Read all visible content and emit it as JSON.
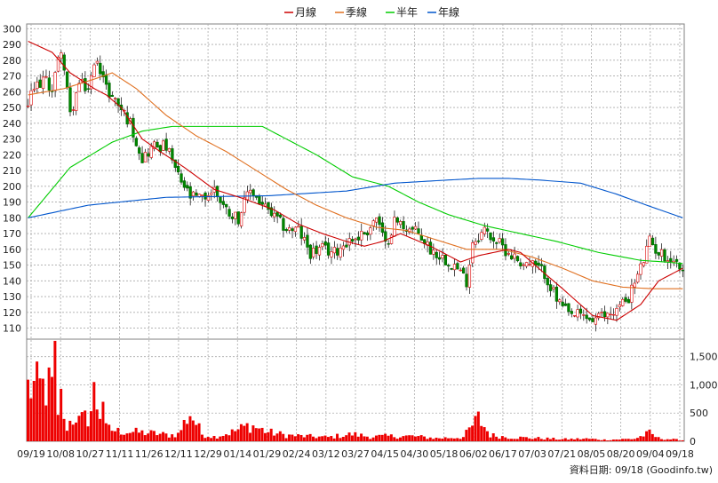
{
  "chart_data": {
    "type": "candlestick",
    "legend": [
      {
        "name": "月線",
        "color": "#cc0000"
      },
      {
        "name": "季線",
        "color": "#e07020"
      },
      {
        "name": "半年",
        "color": "#00cc00"
      },
      {
        "name": "年線",
        "color": "#0055cc"
      }
    ],
    "price_axis": {
      "ticks": [
        110,
        120,
        130,
        140,
        150,
        160,
        170,
        180,
        190,
        200,
        210,
        220,
        230,
        240,
        250,
        260,
        270,
        280,
        290,
        300
      ],
      "ylim": [
        103,
        303
      ]
    },
    "volume_axis": {
      "ticks": [
        "0",
        "500",
        "1,000",
        "1,500"
      ],
      "tick_values": [
        0,
        500,
        1000,
        1500
      ],
      "ylim": [
        0,
        1810
      ]
    },
    "x_labels": [
      "09/19",
      "10/08",
      "10/27",
      "11/11",
      "11/26",
      "12/11",
      "12/29",
      "01/14",
      "01/29",
      "02/24",
      "03/12",
      "03/27",
      "04/15",
      "04/30",
      "05/18",
      "06/02",
      "06/17",
      "07/03",
      "07/21",
      "08/05",
      "08/20",
      "09/04",
      "09/18"
    ],
    "footer": "資料日期: 09/18  (Goodinfo.tw)",
    "price_anchors": [
      [
        0,
        252
      ],
      [
        2,
        262
      ],
      [
        5,
        268
      ],
      [
        8,
        262
      ],
      [
        11,
        288
      ],
      [
        14,
        245
      ],
      [
        17,
        265
      ],
      [
        20,
        262
      ],
      [
        23,
        282
      ],
      [
        26,
        262
      ],
      [
        30,
        252
      ],
      [
        34,
        240
      ],
      [
        38,
        218
      ],
      [
        42,
        226
      ],
      [
        46,
        225
      ],
      [
        50,
        206
      ],
      [
        54,
        193
      ],
      [
        58,
        192
      ],
      [
        62,
        198
      ],
      [
        66,
        185
      ],
      [
        70,
        180
      ],
      [
        74,
        198
      ],
      [
        78,
        188
      ],
      [
        82,
        180
      ],
      [
        86,
        173
      ],
      [
        90,
        172
      ],
      [
        94,
        158
      ],
      [
        98,
        160
      ],
      [
        102,
        158
      ],
      [
        106,
        165
      ],
      [
        110,
        168
      ],
      [
        113,
        172
      ],
      [
        116,
        180
      ],
      [
        119,
        162
      ],
      [
        122,
        178
      ],
      [
        126,
        174
      ],
      [
        130,
        170
      ],
      [
        134,
        160
      ],
      [
        138,
        155
      ],
      [
        142,
        150
      ],
      [
        146,
        140
      ],
      [
        148,
        165
      ],
      [
        152,
        172
      ],
      [
        156,
        165
      ],
      [
        160,
        158
      ],
      [
        164,
        152
      ],
      [
        168,
        150
      ],
      [
        172,
        145
      ],
      [
        176,
        128
      ],
      [
        180,
        118
      ],
      [
        184,
        118
      ],
      [
        188,
        115
      ],
      [
        192,
        118
      ],
      [
        196,
        122
      ],
      [
        200,
        130
      ],
      [
        204,
        148
      ],
      [
        207,
        165
      ],
      [
        210,
        158
      ],
      [
        213,
        155
      ],
      [
        216,
        152
      ],
      [
        218,
        145
      ]
    ],
    "ma_month": [
      [
        0,
        292
      ],
      [
        8,
        285
      ],
      [
        14,
        272
      ],
      [
        22,
        262
      ],
      [
        26,
        258
      ],
      [
        31,
        250
      ],
      [
        38,
        230
      ],
      [
        44,
        222
      ],
      [
        52,
        212
      ],
      [
        62,
        198
      ],
      [
        72,
        192
      ],
      [
        82,
        185
      ],
      [
        90,
        176
      ],
      [
        98,
        170
      ],
      [
        106,
        165
      ],
      [
        112,
        162
      ],
      [
        118,
        165
      ],
      [
        124,
        170
      ],
      [
        134,
        162
      ],
      [
        144,
        152
      ],
      [
        150,
        156
      ],
      [
        160,
        160
      ],
      [
        164,
        158
      ],
      [
        170,
        148
      ],
      [
        178,
        135
      ],
      [
        188,
        118
      ],
      [
        196,
        115
      ],
      [
        204,
        125
      ],
      [
        210,
        140
      ],
      [
        218,
        148
      ]
    ],
    "ma_quarter": [
      [
        0,
        258
      ],
      [
        12,
        262
      ],
      [
        22,
        268
      ],
      [
        28,
        272
      ],
      [
        36,
        262
      ],
      [
        46,
        245
      ],
      [
        56,
        232
      ],
      [
        66,
        222
      ],
      [
        76,
        210
      ],
      [
        86,
        198
      ],
      [
        96,
        188
      ],
      [
        106,
        180
      ],
      [
        116,
        174
      ],
      [
        126,
        172
      ],
      [
        136,
        166
      ],
      [
        146,
        160
      ],
      [
        158,
        160
      ],
      [
        168,
        155
      ],
      [
        178,
        148
      ],
      [
        188,
        140
      ],
      [
        198,
        136
      ],
      [
        208,
        135
      ],
      [
        218,
        135
      ]
    ],
    "ma_half": [
      [
        0,
        180
      ],
      [
        14,
        212
      ],
      [
        28,
        228
      ],
      [
        38,
        235
      ],
      [
        48,
        238
      ],
      [
        62,
        238
      ],
      [
        78,
        238
      ],
      [
        84,
        232
      ],
      [
        96,
        220
      ],
      [
        108,
        206
      ],
      [
        120,
        200
      ],
      [
        130,
        190
      ],
      [
        140,
        182
      ],
      [
        152,
        175
      ],
      [
        164,
        170
      ],
      [
        176,
        165
      ],
      [
        190,
        158
      ],
      [
        204,
        153
      ],
      [
        212,
        152
      ],
      [
        218,
        151
      ]
    ],
    "ma_year": [
      [
        0,
        180
      ],
      [
        20,
        188
      ],
      [
        46,
        193
      ],
      [
        80,
        194
      ],
      [
        106,
        197
      ],
      [
        122,
        202
      ],
      [
        140,
        204
      ],
      [
        150,
        205
      ],
      [
        160,
        205
      ],
      [
        170,
        204
      ],
      [
        184,
        202
      ],
      [
        196,
        195
      ],
      [
        206,
        188
      ],
      [
        212,
        184
      ],
      [
        218,
        180
      ]
    ],
    "volume_anchors": [
      [
        8,
        1050
      ],
      [
        9,
        850
      ],
      [
        10,
        420
      ],
      [
        13,
        300
      ],
      [
        16,
        520
      ],
      [
        17,
        390
      ],
      [
        20,
        480
      ],
      [
        21,
        610
      ],
      [
        22,
        880
      ],
      [
        26,
        250
      ],
      [
        30,
        200
      ],
      [
        36,
        180
      ],
      [
        43,
        150
      ],
      [
        47,
        120
      ],
      [
        50,
        140
      ],
      [
        54,
        560
      ],
      [
        58,
        140
      ],
      [
        62,
        90
      ],
      [
        68,
        180
      ],
      [
        74,
        320
      ],
      [
        80,
        180
      ],
      [
        86,
        120
      ],
      [
        92,
        100
      ],
      [
        100,
        80
      ],
      [
        108,
        140
      ],
      [
        114,
        90
      ],
      [
        120,
        100
      ],
      [
        128,
        100
      ],
      [
        136,
        60
      ],
      [
        145,
        80
      ],
      [
        150,
        450
      ],
      [
        154,
        120
      ],
      [
        160,
        80
      ],
      [
        170,
        60
      ],
      [
        178,
        40
      ],
      [
        186,
        50
      ],
      [
        192,
        30
      ],
      [
        198,
        40
      ],
      [
        202,
        50
      ],
      [
        207,
        160
      ],
      [
        210,
        60
      ],
      [
        218,
        20
      ]
    ]
  }
}
